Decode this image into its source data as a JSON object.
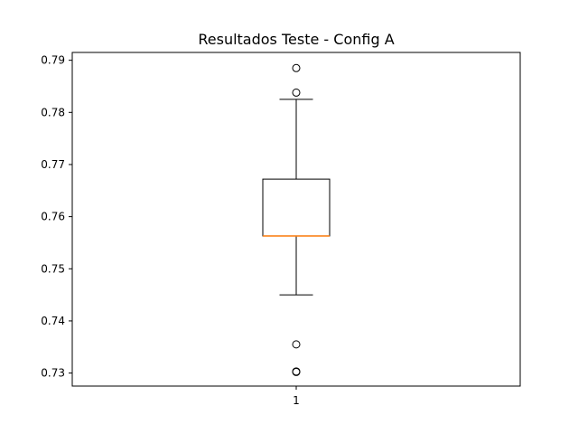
{
  "chart_data": {
    "type": "box",
    "title": "Resultados Teste - Config A",
    "xlabel": "",
    "ylabel": "",
    "categories": [
      "1"
    ],
    "ylim": [
      0.7275,
      0.7915
    ],
    "yticks": [
      0.73,
      0.74,
      0.75,
      0.76,
      0.77,
      0.78,
      0.79
    ],
    "ytick_labels": [
      "0.73",
      "0.74",
      "0.75",
      "0.76",
      "0.77",
      "0.78",
      "0.79"
    ],
    "grid": false,
    "boxes": [
      {
        "category": "1",
        "whisker_low": 0.745,
        "q1": 0.7563,
        "median": 0.7563,
        "q3": 0.7672,
        "whisker_high": 0.7825,
        "outliers": [
          0.7885,
          0.7838,
          0.7355,
          0.7303,
          0.7302
        ]
      }
    ],
    "colors": {
      "box": "#000000",
      "median": "#ff7f0e",
      "outlier": "#000000"
    }
  }
}
